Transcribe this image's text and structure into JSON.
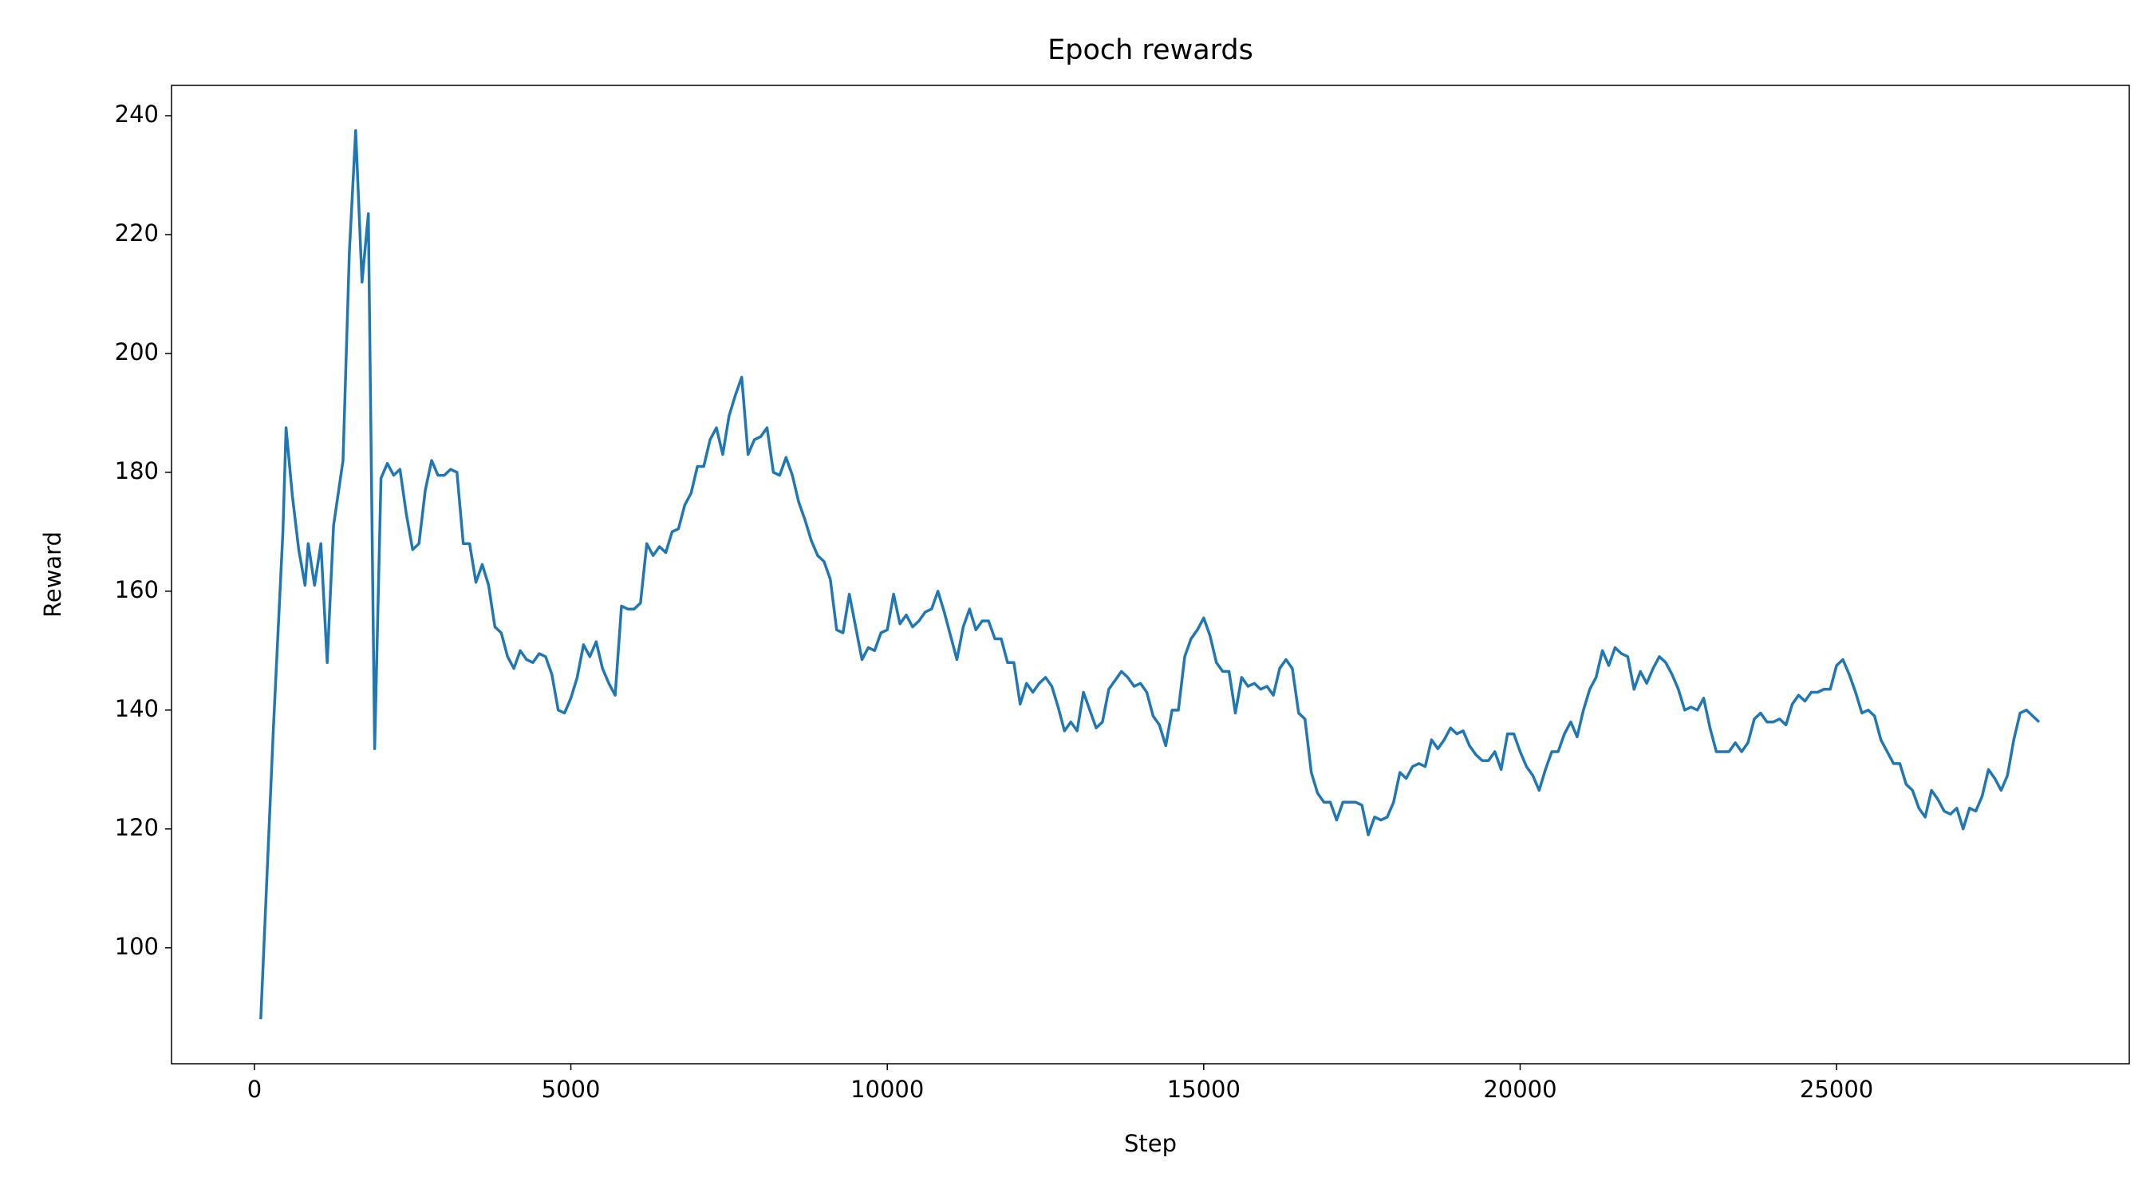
{
  "chart_data": {
    "type": "line",
    "title": "Epoch rewards",
    "x_label": "Step",
    "y_label": "Reward",
    "color": "#1f77b4",
    "grid": false,
    "xlim": [
      -1310,
      29625
    ],
    "ylim": [
      80.5,
      245.1
    ],
    "xticks": [
      0,
      5000,
      10000,
      15000,
      20000,
      25000
    ],
    "yticks": [
      100,
      120,
      140,
      160,
      180,
      200,
      220,
      240
    ],
    "x": [
      100,
      300,
      450,
      500,
      600,
      700,
      800,
      850,
      950,
      1050,
      1150,
      1250,
      1400,
      1500,
      1600,
      1700,
      1800,
      1900,
      2000,
      2100,
      2200,
      2300,
      2400,
      2500,
      2600,
      2700,
      2800,
      2900,
      3000,
      3100,
      3200,
      3300,
      3400,
      3500,
      3600,
      3700,
      3800,
      3900,
      4000,
      4100,
      4200,
      4300,
      4400,
      4500,
      4600,
      4700,
      4800,
      4900,
      5000,
      5100,
      5200,
      5300,
      5400,
      5500,
      5600,
      5700,
      5800,
      5900,
      6000,
      6100,
      6200,
      6300,
      6400,
      6500,
      6600,
      6700,
      6800,
      6900,
      7000,
      7100,
      7200,
      7300,
      7400,
      7500,
      7600,
      7700,
      7800,
      7900,
      8000,
      8100,
      8200,
      8300,
      8400,
      8500,
      8600,
      8700,
      8800,
      8900,
      9000,
      9100,
      9200,
      9300,
      9400,
      9500,
      9600,
      9700,
      9800,
      9900,
      10000,
      10100,
      10200,
      10300,
      10400,
      10500,
      10600,
      10700,
      10800,
      10900,
      11000,
      11100,
      11200,
      11300,
      11400,
      11500,
      11600,
      11700,
      11800,
      11900,
      12000,
      12100,
      12200,
      12300,
      12400,
      12500,
      12600,
      12700,
      12800,
      12900,
      13000,
      13100,
      13200,
      13300,
      13400,
      13500,
      13600,
      13700,
      13800,
      13900,
      14000,
      14100,
      14200,
      14300,
      14400,
      14500,
      14600,
      14700,
      14800,
      14900,
      15000,
      15100,
      15200,
      15300,
      15400,
      15500,
      15600,
      15700,
      15800,
      15900,
      16000,
      16100,
      16200,
      16300,
      16400,
      16500,
      16600,
      16700,
      16800,
      16900,
      17000,
      17100,
      17200,
      17300,
      17400,
      17500,
      17600,
      17700,
      17800,
      17900,
      18000,
      18100,
      18200,
      18300,
      18400,
      18500,
      18600,
      18700,
      18800,
      18900,
      19000,
      19100,
      19200,
      19300,
      19400,
      19500,
      19600,
      19700,
      19800,
      19900,
      20000,
      20100,
      20200,
      20300,
      20400,
      20500,
      20600,
      20700,
      20800,
      20900,
      21000,
      21100,
      21200,
      21300,
      21400,
      21500,
      21600,
      21700,
      21800,
      21900,
      22000,
      22100,
      22200,
      22300,
      22400,
      22500,
      22600,
      22700,
      22800,
      22900,
      23000,
      23100,
      23200,
      23300,
      23400,
      23500,
      23600,
      23700,
      23800,
      23900,
      24000,
      24100,
      24200,
      24300,
      24400,
      24500,
      24600,
      24700,
      24800,
      24900,
      25000,
      25100,
      25200,
      25300,
      25400,
      25500,
      25600,
      25700,
      25800,
      25900,
      26000,
      26100,
      26200,
      26300,
      26400,
      26500,
      26600,
      26700,
      26800,
      26900,
      27000,
      27100,
      27200,
      27300,
      27400,
      27500,
      27600,
      27700,
      27800,
      27900,
      28000,
      28100,
      28200
    ],
    "values": [
      88,
      137,
      170,
      187.5,
      176,
      167,
      161,
      168,
      161,
      168,
      148,
      171,
      182,
      217,
      237.5,
      212,
      223.5,
      133.5,
      179,
      181.5,
      179.5,
      180.5,
      173,
      167,
      168,
      177,
      182,
      179.5,
      179.5,
      180.5,
      180,
      168,
      168,
      161.5,
      164.5,
      161,
      154,
      153,
      149,
      147,
      150,
      148.5,
      148,
      149.5,
      149,
      146,
      140,
      139.5,
      142,
      145.5,
      151,
      149,
      151.5,
      147,
      144.5,
      142.5,
      157.5,
      157,
      157,
      158,
      168,
      166,
      167.5,
      166.5,
      170,
      170.5,
      174.5,
      176.5,
      181,
      181,
      185.5,
      187.5,
      183,
      189.5,
      193,
      196,
      183,
      185.5,
      186,
      187.5,
      180,
      179.5,
      182.5,
      179.5,
      175,
      172,
      168.5,
      166,
      165,
      162,
      153.5,
      153,
      159.5,
      154,
      148.5,
      150.5,
      150,
      153,
      153.5,
      159.5,
      154.5,
      156,
      154,
      155,
      156.5,
      157,
      160,
      156.5,
      152.5,
      148.5,
      154,
      157,
      153.5,
      155,
      155,
      152,
      152,
      148,
      148,
      141,
      144.5,
      143,
      144.5,
      145.5,
      144,
      140.5,
      136.5,
      138,
      136.5,
      143,
      140,
      137,
      138,
      143.5,
      145,
      146.5,
      145.5,
      144,
      144.5,
      143,
      139,
      137.5,
      134,
      140,
      140,
      149,
      152,
      153.5,
      155.5,
      152.5,
      148,
      146.5,
      146.5,
      139.5,
      145.5,
      144,
      144.5,
      143.5,
      144,
      142.5,
      147,
      148.5,
      147,
      139.5,
      138.5,
      129.5,
      126,
      124.5,
      124.5,
      121.5,
      124.5,
      124.5,
      124.5,
      124,
      119,
      122,
      121.5,
      122,
      124.5,
      129.5,
      128.5,
      130.5,
      131,
      130.5,
      135,
      133.5,
      135,
      137,
      136,
      136.5,
      134,
      132.5,
      131.5,
      131.5,
      133,
      130,
      136,
      136,
      133,
      130.5,
      129,
      126.5,
      130,
      133,
      133,
      136,
      138,
      135.5,
      140,
      143.5,
      145.5,
      150,
      147.5,
      150.5,
      149.5,
      149,
      143.5,
      146.5,
      144.5,
      147,
      149,
      148,
      146,
      143.5,
      140,
      140.5,
      140,
      142,
      137,
      133,
      133,
      133,
      134.5,
      133,
      134.5,
      138.5,
      139.5,
      138,
      138,
      138.5,
      137.5,
      141,
      142.5,
      141.5,
      143,
      143,
      143.5,
      143.5,
      147.5,
      148.5,
      146,
      143,
      139.5,
      140,
      139,
      135,
      133,
      131,
      131,
      127.5,
      126.5,
      123.5,
      122,
      126.5,
      125,
      123,
      122.5,
      123.5,
      120,
      123.5,
      123,
      125.5,
      130,
      128.5,
      126.5,
      129,
      135,
      139.5,
      140,
      139,
      138
    ]
  }
}
